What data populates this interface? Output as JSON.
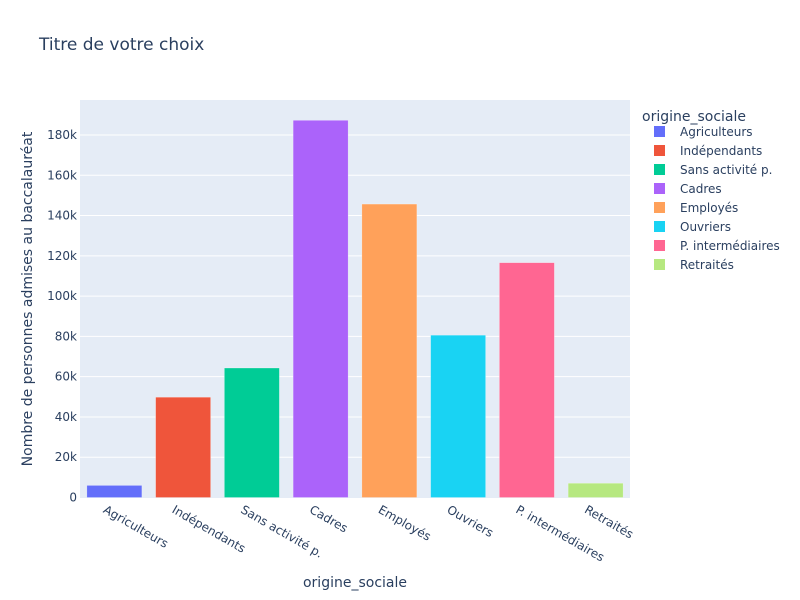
{
  "chart_data": {
    "type": "bar",
    "title": "Titre de votre choix",
    "xlabel": "origine_sociale",
    "ylabel": "Nombre de personnes admises au baccalauréat",
    "categories": [
      "Agriculteurs",
      "Indépendants",
      "Sans activité p.",
      "Cadres",
      "Employés",
      "Ouvriers",
      "P. intermédiaires",
      "Retraités"
    ],
    "values": [
      6000,
      49800,
      64300,
      187300,
      145700,
      80600,
      116600,
      7100
    ],
    "colors": [
      "#636efa",
      "#EF553B",
      "#00cc96",
      "#ab63fa",
      "#FFA15A",
      "#19d3f3",
      "#FF6692",
      "#B6E880"
    ],
    "ylim": [
      0,
      197000
    ],
    "yticks": [
      0,
      20000,
      40000,
      60000,
      80000,
      100000,
      120000,
      140000,
      160000,
      180000
    ],
    "ytick_labels": [
      "0",
      "20k",
      "40k",
      "60k",
      "80k",
      "100k",
      "120k",
      "140k",
      "160k",
      "180k"
    ],
    "grid": true,
    "legend": {
      "title": "origine_sociale",
      "placement": "right"
    },
    "background": "#E5ECF6"
  }
}
